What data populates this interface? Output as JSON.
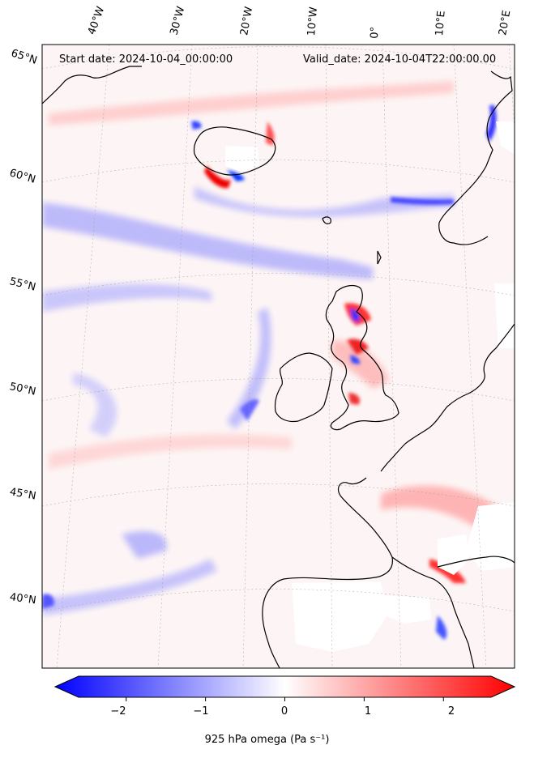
{
  "header": {
    "start_date": "Start date: 2024-10-04_00:00:00",
    "valid_date": "Valid_date: 2024-10-04T22:00:00.00"
  },
  "lon_labels": [
    "40°W",
    "30°W",
    "20°W",
    "10°W",
    "0°",
    "10°E",
    "20°E"
  ],
  "lat_labels": [
    "65°N",
    "60°N",
    "55°N",
    "50°N",
    "45°N",
    "40°N"
  ],
  "colorbar": {
    "min": -2.6,
    "max": 2.6,
    "ticks": [
      "−2",
      "−1",
      "0",
      "1",
      "2"
    ],
    "tick_values": [
      -2,
      -1,
      0,
      1,
      2
    ],
    "label": "925 hPa omega (Pa s⁻¹)",
    "cmap": "bwr",
    "colors": {
      "low": "#0000ff",
      "mid": "#ffffff",
      "high": "#ff0000"
    }
  },
  "colors": {
    "coastline": "#000000",
    "gridline": "#999999",
    "nodata": "#ffffff"
  }
}
